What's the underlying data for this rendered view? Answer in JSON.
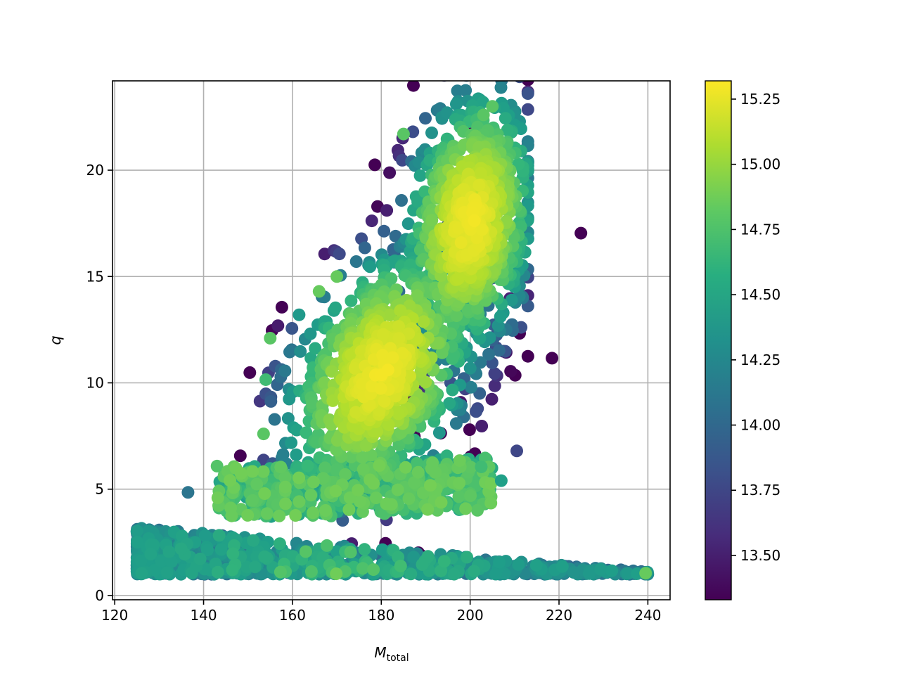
{
  "chart_data": {
    "type": "scatter",
    "title": "",
    "xlabel_main": "M",
    "xlabel_sub": "total",
    "ylabel": "q",
    "xlim": [
      119.5,
      245
    ],
    "ylim": [
      -0.2,
      24.2
    ],
    "xticks": [
      120,
      140,
      160,
      180,
      200,
      220,
      240
    ],
    "yticks": [
      0,
      5,
      10,
      15,
      20
    ],
    "grid": true,
    "colormap": "viridis",
    "colorbar": {
      "min": 13.33,
      "max": 15.32,
      "ticks": [
        "13.50",
        "13.75",
        "14.00",
        "14.25",
        "14.50",
        "14.75",
        "15.00",
        "15.25"
      ]
    },
    "clusters": [
      {
        "region": "low-q band",
        "x_range": [
          125,
          240
        ],
        "y_range": [
          0.9,
          3.2
        ],
        "c_range": [
          13.9,
          14.9
        ],
        "count": 900
      },
      {
        "region": "q~5 band",
        "x_range": [
          142,
          210
        ],
        "y_range": [
          3.5,
          6.2
        ],
        "c_range": [
          14.4,
          14.85
        ],
        "count": 600
      },
      {
        "region": "mid cluster",
        "center": [
          180,
          10.5
        ],
        "spread": [
          10,
          3
        ],
        "c_peak": 15.25,
        "count": 900
      },
      {
        "region": "upper cluster",
        "center": [
          200,
          17.5
        ],
        "spread": [
          7,
          3
        ],
        "c_peak": 15.25,
        "count": 900
      }
    ],
    "outliers": [
      {
        "x": 210.5,
        "y": 6.8,
        "c": 13.75
      },
      {
        "x": 161.5,
        "y": 13.2,
        "c": 14.4
      },
      {
        "x": 136.5,
        "y": 4.85,
        "c": 14.1
      },
      {
        "x": 207,
        "y": 5.4,
        "c": 14.45
      },
      {
        "x": 202.5,
        "y": 6.05,
        "c": 14.7
      },
      {
        "x": 185,
        "y": 21.7,
        "c": 14.8
      },
      {
        "x": 203,
        "y": 22.6,
        "c": 14.8
      },
      {
        "x": 205,
        "y": 23.0,
        "c": 14.8
      },
      {
        "x": 170,
        "y": 15.0,
        "c": 14.85
      },
      {
        "x": 166,
        "y": 14.3,
        "c": 14.85
      },
      {
        "x": 155,
        "y": 12.1,
        "c": 14.8
      },
      {
        "x": 154,
        "y": 10.15,
        "c": 14.7
      },
      {
        "x": 153.5,
        "y": 7.6,
        "c": 14.8
      },
      {
        "x": 239.5,
        "y": 1.05,
        "c": 14.85
      }
    ]
  }
}
